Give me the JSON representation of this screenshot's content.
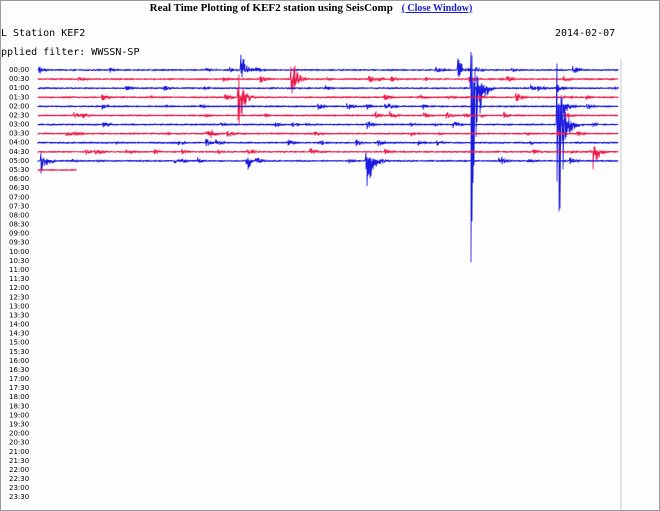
{
  "header": {
    "title": "Real Time Plotting of KEF2 station using SeisComp",
    "link": "( Close Window)"
  },
  "station": "L Station KEF2",
  "date": "2014-02-07",
  "filter": "pplied filter: WWSSN-SP",
  "time_labels": [
    "00:00",
    "00:30",
    "01:00",
    "01:30",
    "02:00",
    "02:30",
    "03:00",
    "03:30",
    "04:00",
    "04:30",
    "05:00",
    "05:30",
    "06:00",
    "06:30",
    "07:00",
    "07:30",
    "08:00",
    "08:30",
    "09:00",
    "09:30",
    "10:00",
    "10:30",
    "11:00",
    "11:30",
    "12:00",
    "12:30",
    "13:00",
    "13:30",
    "14:00",
    "14:30",
    "15:00",
    "15:30",
    "16:00",
    "16:30",
    "17:00",
    "17:30",
    "18:00",
    "18:30",
    "19:00",
    "19:30",
    "20:00",
    "20:30",
    "21:00",
    "21:30",
    "22:00",
    "22:30",
    "23:00",
    "23:30"
  ]
}
